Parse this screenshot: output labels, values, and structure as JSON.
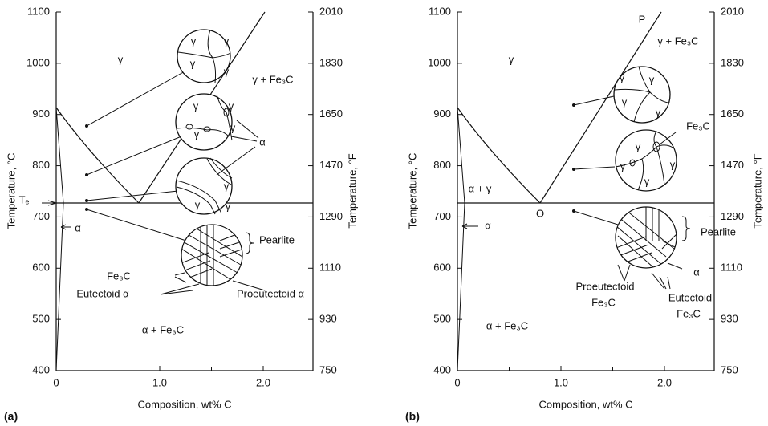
{
  "panels": [
    {
      "label": "(a)",
      "y_axis_left": {
        "title": "Temperature, °C",
        "ticks": [
          "1100",
          "1000",
          "900",
          "800",
          "700",
          "600",
          "500",
          "400"
        ]
      },
      "y_axis_right": {
        "title": "Temperature, °F",
        "ticks": [
          "2010",
          "1830",
          "1650",
          "1470",
          "1290",
          "1110",
          "930",
          "750"
        ]
      },
      "x_axis": {
        "title": "Composition, wt% C",
        "ticks": [
          "0",
          "1.0",
          "2.0"
        ]
      },
      "annotations": [
        "γ",
        "γ + Fe₃C",
        "α",
        "Tₑ",
        "α",
        "Pearlite",
        "Fe₃C",
        "Eutectoid α",
        "Proeutectoid α",
        "α + Fe₃C",
        "γ",
        "γ",
        "γ",
        "γ",
        "γ",
        "γ",
        "γ",
        "γ",
        "γ",
        "γ",
        "γ"
      ]
    },
    {
      "label": "(b)",
      "y_axis_left": {
        "title": "Temperature, °C",
        "ticks": [
          "1100",
          "1000",
          "900",
          "800",
          "700",
          "600",
          "500",
          "400"
        ]
      },
      "y_axis_right": {
        "title": "Temperature, °F",
        "ticks": [
          "2010",
          "1830",
          "1650",
          "1470",
          "1290",
          "1110",
          "930",
          "750"
        ]
      },
      "x_axis": {
        "title": "Composition, wt% C",
        "ticks": [
          "0",
          "1.0",
          "2.0"
        ]
      },
      "annotations": [
        "γ",
        "P",
        "γ + Fe₃C",
        "α + γ",
        "O",
        "α",
        "Fe₃C",
        "Pearlite",
        "α",
        "Proeutectoid",
        "Fe₃C",
        "Eutectoid",
        "Fe₃C",
        "α + Fe₃C",
        "γ",
        "γ",
        "γ",
        "γ",
        "γ",
        "γ",
        "γ",
        "γ"
      ]
    }
  ]
}
